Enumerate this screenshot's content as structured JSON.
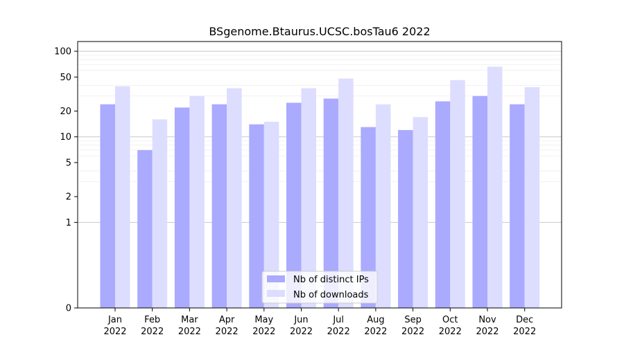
{
  "chart_data": {
    "type": "bar",
    "title": "BSgenome.Btaurus.UCSC.bosTau6 2022",
    "xlabel": "",
    "ylabel": "",
    "y_scale": "symlog",
    "ylim": [
      0,
      130
    ],
    "grid": true,
    "legend_position": "bottom-center",
    "categories": [
      [
        "Jan",
        "2022"
      ],
      [
        "Feb",
        "2022"
      ],
      [
        "Mar",
        "2022"
      ],
      [
        "Apr",
        "2022"
      ],
      [
        "May",
        "2022"
      ],
      [
        "Jun",
        "2022"
      ],
      [
        "Jul",
        "2022"
      ],
      [
        "Aug",
        "2022"
      ],
      [
        "Sep",
        "2022"
      ],
      [
        "Oct",
        "2022"
      ],
      [
        "Nov",
        "2022"
      ],
      [
        "Dec",
        "2022"
      ]
    ],
    "y_ticks": [
      0,
      1,
      2,
      5,
      10,
      20,
      50,
      100
    ],
    "series": [
      {
        "name": "Nb of distinct IPs",
        "color": "#aaaaff",
        "values": [
          24,
          7,
          22,
          24,
          14,
          25,
          28,
          13,
          12,
          26,
          30,
          24
        ]
      },
      {
        "name": "Nb of downloads",
        "color": "#ddddff",
        "values": [
          39,
          16,
          30,
          37,
          15,
          37,
          48,
          24,
          17,
          46,
          66,
          38
        ]
      }
    ]
  }
}
